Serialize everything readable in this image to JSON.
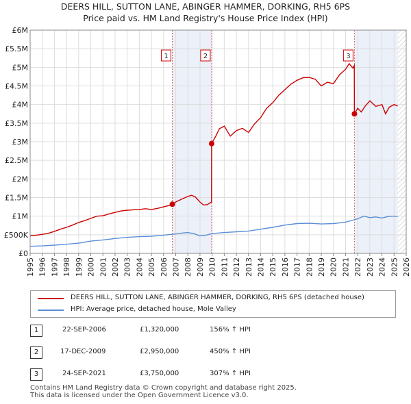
{
  "title_line1": "DEERS HILL, SUTTON LANE, ABINGER HAMMER, DORKING, RH5 6PS",
  "title_line2": "Price paid vs. HM Land Registry's House Price Index (HPI)",
  "chart_data": {
    "type": "line",
    "title": "DEERS HILL, SUTTON LANE, ABINGER HAMMER, DORKING, RH5 6PS — Price paid vs. HM Land Registry's House Price Index (HPI)",
    "xlim": [
      1995,
      2026
    ],
    "ylim": [
      0,
      6000000
    ],
    "x_ticks": [
      "1995",
      "1996",
      "1997",
      "1998",
      "1999",
      "2000",
      "2001",
      "2002",
      "2003",
      "2004",
      "2005",
      "2006",
      "2007",
      "2008",
      "2009",
      "2010",
      "2011",
      "2012",
      "2013",
      "2014",
      "2015",
      "2016",
      "2017",
      "2018",
      "2019",
      "2020",
      "2021",
      "2022",
      "2023",
      "2024",
      "2025",
      "2026"
    ],
    "y_ticks": [
      {
        "value": 0,
        "label": "£0"
      },
      {
        "value": 500000,
        "label": "£500K"
      },
      {
        "value": 1000000,
        "label": "£1M"
      },
      {
        "value": 1500000,
        "label": "£1.5M"
      },
      {
        "value": 2000000,
        "label": "£2M"
      },
      {
        "value": 2500000,
        "label": "£2.5M"
      },
      {
        "value": 3000000,
        "label": "£3M"
      },
      {
        "value": 3500000,
        "label": "£3.5M"
      },
      {
        "value": 4000000,
        "label": "£4M"
      },
      {
        "value": 4500000,
        "label": "£4.5M"
      },
      {
        "value": 5000000,
        "label": "£5M"
      },
      {
        "value": 5500000,
        "label": "£5.5M"
      },
      {
        "value": 6000000,
        "label": "£6M"
      }
    ],
    "grid": true,
    "shaded_periods": [
      [
        2006.72,
        2009.96
      ],
      [
        2021.73,
        2025.3
      ]
    ],
    "projection_start": 2025.3,
    "series": [
      {
        "name": "DEERS HILL, SUTTON LANE, ABINGER HAMMER, DORKING, RH5 6PS (detached house)",
        "color": "#cc0000",
        "x": [
          1995.0,
          1995.5,
          1996.0,
          1996.5,
          1997.0,
          1997.5,
          1998.0,
          1998.5,
          1999.0,
          1999.5,
          2000.0,
          2000.5,
          2001.0,
          2001.5,
          2002.0,
          2002.5,
          2003.0,
          2003.5,
          2004.0,
          2004.5,
          2005.0,
          2005.5,
          2006.0,
          2006.5,
          2006.72,
          2007.0,
          2007.5,
          2008.0,
          2008.3,
          2008.6,
          2009.0,
          2009.3,
          2009.6,
          2009.95,
          2009.96,
          2010.3,
          2010.6,
          2011.0,
          2011.5,
          2012.0,
          2012.5,
          2013.0,
          2013.5,
          2014.0,
          2014.5,
          2015.0,
          2015.5,
          2016.0,
          2016.5,
          2017.0,
          2017.5,
          2018.0,
          2018.5,
          2019.0,
          2019.5,
          2020.0,
          2020.5,
          2021.0,
          2021.3,
          2021.6,
          2021.72,
          2021.73,
          2022.0,
          2022.3,
          2022.6,
          2023.0,
          2023.5,
          2024.0,
          2024.3,
          2024.6,
          2025.0,
          2025.3
        ],
        "y": [
          470000,
          490000,
          510000,
          540000,
          590000,
          650000,
          700000,
          760000,
          830000,
          880000,
          940000,
          1000000,
          1010000,
          1060000,
          1100000,
          1140000,
          1160000,
          1170000,
          1180000,
          1200000,
          1180000,
          1210000,
          1250000,
          1290000,
          1320000,
          1380000,
          1460000,
          1530000,
          1560000,
          1520000,
          1380000,
          1300000,
          1310000,
          1380000,
          2950000,
          3150000,
          3350000,
          3420000,
          3150000,
          3300000,
          3360000,
          3250000,
          3480000,
          3650000,
          3900000,
          4050000,
          4250000,
          4400000,
          4550000,
          4650000,
          4720000,
          4730000,
          4680000,
          4500000,
          4600000,
          4560000,
          4800000,
          4950000,
          5100000,
          4980000,
          5050000,
          3750000,
          3900000,
          3800000,
          3950000,
          4100000,
          3950000,
          4000000,
          3750000,
          3930000,
          4000000,
          3960000
        ]
      },
      {
        "name": "HPI: Average price, detached house, Mole Valley",
        "color": "#5b8fd6",
        "x": [
          1995.0,
          1996.0,
          1997.0,
          1998.0,
          1999.0,
          2000.0,
          2001.0,
          2002.0,
          2003.0,
          2004.0,
          2005.0,
          2006.0,
          2007.0,
          2007.5,
          2008.0,
          2008.5,
          2009.0,
          2009.5,
          2010.0,
          2011.0,
          2012.0,
          2013.0,
          2014.0,
          2015.0,
          2016.0,
          2017.0,
          2018.0,
          2019.0,
          2020.0,
          2021.0,
          2022.0,
          2022.5,
          2023.0,
          2023.5,
          2024.0,
          2024.5,
          2025.0,
          2025.3
        ],
        "y": [
          190000,
          200000,
          220000,
          245000,
          275000,
          330000,
          360000,
          400000,
          430000,
          450000,
          460000,
          490000,
          520000,
          545000,
          560000,
          530000,
          470000,
          490000,
          530000,
          560000,
          580000,
          600000,
          650000,
          700000,
          760000,
          800000,
          810000,
          790000,
          800000,
          840000,
          930000,
          1000000,
          960000,
          980000,
          950000,
          990000,
          1000000,
          990000
        ]
      }
    ],
    "sales": [
      {
        "marker": "1",
        "x": 2006.72,
        "y": 1320000
      },
      {
        "marker": "2",
        "x": 2009.96,
        "y": 2950000
      },
      {
        "marker": "3",
        "x": 2021.73,
        "y": 3750000
      }
    ]
  },
  "legend": [
    {
      "label": "DEERS HILL, SUTTON LANE, ABINGER HAMMER, DORKING, RH5 6PS (detached house)",
      "color": "#cc0000"
    },
    {
      "label": "HPI: Average price, detached house, Mole Valley",
      "color": "#5b8fd6"
    }
  ],
  "transactions": [
    {
      "num": "1",
      "date": "22-SEP-2006",
      "price": "£1,320,000",
      "hpi": "156% ↑ HPI"
    },
    {
      "num": "2",
      "date": "17-DEC-2009",
      "price": "£2,950,000",
      "hpi": "450% ↑ HPI"
    },
    {
      "num": "3",
      "date": "24-SEP-2021",
      "price": "£3,750,000",
      "hpi": "307% ↑ HPI"
    }
  ],
  "footer_line1": "Contains HM Land Registry data © Crown copyright and database right 2025.",
  "footer_line2": "This data is licensed under the Open Government Licence v3.0."
}
